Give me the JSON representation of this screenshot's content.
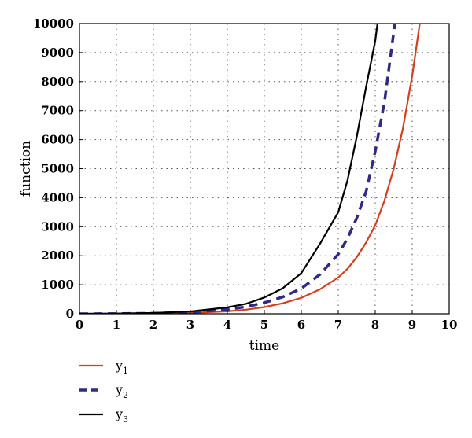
{
  "chart_data": {
    "type": "line",
    "title": "",
    "xlabel": "time",
    "ylabel": "function",
    "xlim": [
      0,
      10
    ],
    "ylim": [
      0,
      10000
    ],
    "x_ticks": [
      0,
      1,
      2,
      3,
      4,
      5,
      6,
      7,
      8,
      9,
      10
    ],
    "y_ticks": [
      0,
      1000,
      2000,
      3000,
      4000,
      5000,
      6000,
      7000,
      8000,
      9000,
      10000
    ],
    "grid": true,
    "legend_position": "bottom-left",
    "series": [
      {
        "name": "y",
        "subscript": "1",
        "color": "#d2401e",
        "style": "solid",
        "x": [
          0,
          1,
          2,
          3,
          4,
          4.5,
          5,
          5.5,
          6,
          6.5,
          7,
          7.25,
          7.5,
          7.75,
          8,
          8.25,
          8.5,
          8.75,
          9,
          9.25
        ],
        "y": [
          0,
          2,
          9,
          30,
          85,
          140,
          230,
          360,
          550,
          840,
          1250,
          1550,
          1950,
          2450,
          3050,
          3900,
          5000,
          6400,
          8200,
          10400
        ]
      },
      {
        "name": "y",
        "subscript": "2",
        "color": "#2e2a86",
        "style": "dashed",
        "x": [
          0,
          1,
          2,
          3,
          4,
          4.5,
          5,
          5.5,
          6,
          6.5,
          7,
          7.25,
          7.5,
          7.75,
          8,
          8.25,
          8.5,
          8.6
        ],
        "y": [
          0,
          4,
          16,
          50,
          150,
          240,
          380,
          580,
          870,
          1350,
          2050,
          2600,
          3300,
          4200,
          5600,
          7300,
          9700,
          10600
        ]
      },
      {
        "name": "y",
        "subscript": "3",
        "color": "#000000",
        "style": "solid",
        "x": [
          0,
          1,
          2,
          3,
          4,
          4.5,
          5,
          5.5,
          6,
          6.5,
          7,
          7.25,
          7.5,
          7.75,
          8,
          8.1
        ],
        "y": [
          0,
          7,
          27,
          80,
          220,
          340,
          560,
          880,
          1400,
          2400,
          3500,
          4600,
          6100,
          7800,
          9400,
          10400
        ]
      }
    ]
  }
}
